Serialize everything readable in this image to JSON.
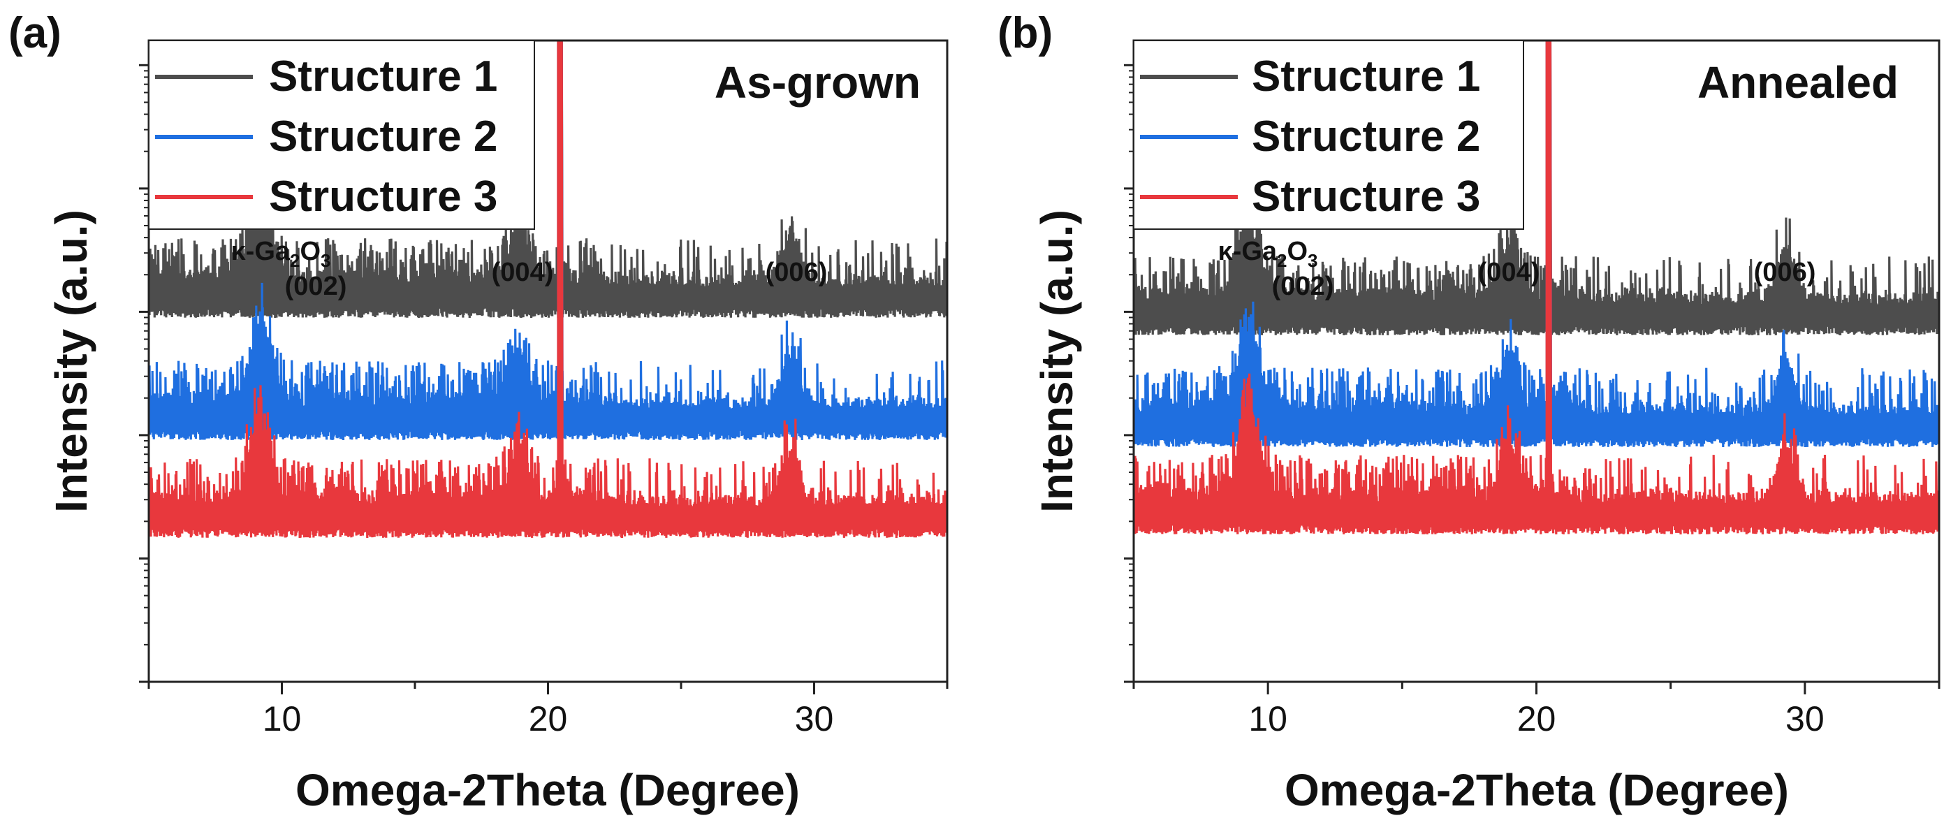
{
  "chart_data": [
    {
      "type": "line",
      "panel_label": "(a)",
      "title": "As-grown",
      "xlabel": "Omega-2Theta (Degree)",
      "ylabel": "Intensity (a.u.)",
      "xlim": [
        5,
        35
      ],
      "xticks": [
        10,
        20,
        30
      ],
      "yscale": "log, arbitrary units with vertical offsets (no tick labels)",
      "legend": "top-left",
      "series": [
        {
          "name": "Structure 1",
          "color": "#4d4d4d"
        },
        {
          "name": "Structure 2",
          "color": "#1f6fe0"
        },
        {
          "name": "Structure 3",
          "color": "#e8383d"
        }
      ],
      "annotations": [
        {
          "text": "κ-Ga₂O₃",
          "x": 9.2
        },
        {
          "text": "(002)",
          "x": 9.2
        },
        {
          "text": "(004)",
          "x": 18.9
        },
        {
          "text": "(006)",
          "x": 29.1
        }
      ],
      "peaks_deg": [
        9.2,
        18.9,
        20.45,
        29.1
      ],
      "substrate_peak_deg": 20.45
    },
    {
      "type": "line",
      "panel_label": "(b)",
      "title": "Annealed",
      "xlabel": "Omega-2Theta (Degree)",
      "ylabel": "Intensity (a.u.)",
      "xlim": [
        5,
        35
      ],
      "xticks": [
        10,
        20,
        30
      ],
      "yscale": "log, arbitrary units with vertical offsets (no tick labels)",
      "legend": "top-left",
      "series": [
        {
          "name": "Structure 1",
          "color": "#4d4d4d"
        },
        {
          "name": "Structure 2",
          "color": "#1f6fe0"
        },
        {
          "name": "Structure 3",
          "color": "#e8383d"
        }
      ],
      "annotations": [
        {
          "text": "κ-Ga₂O₃",
          "x": 9.3
        },
        {
          "text": "(002)",
          "x": 9.3
        },
        {
          "text": "(004)",
          "x": 19.0
        },
        {
          "text": "(006)",
          "x": 29.3
        }
      ],
      "peaks_deg": [
        9.3,
        19.0,
        20.45,
        29.3
      ],
      "substrate_peak_deg": 20.45
    }
  ]
}
